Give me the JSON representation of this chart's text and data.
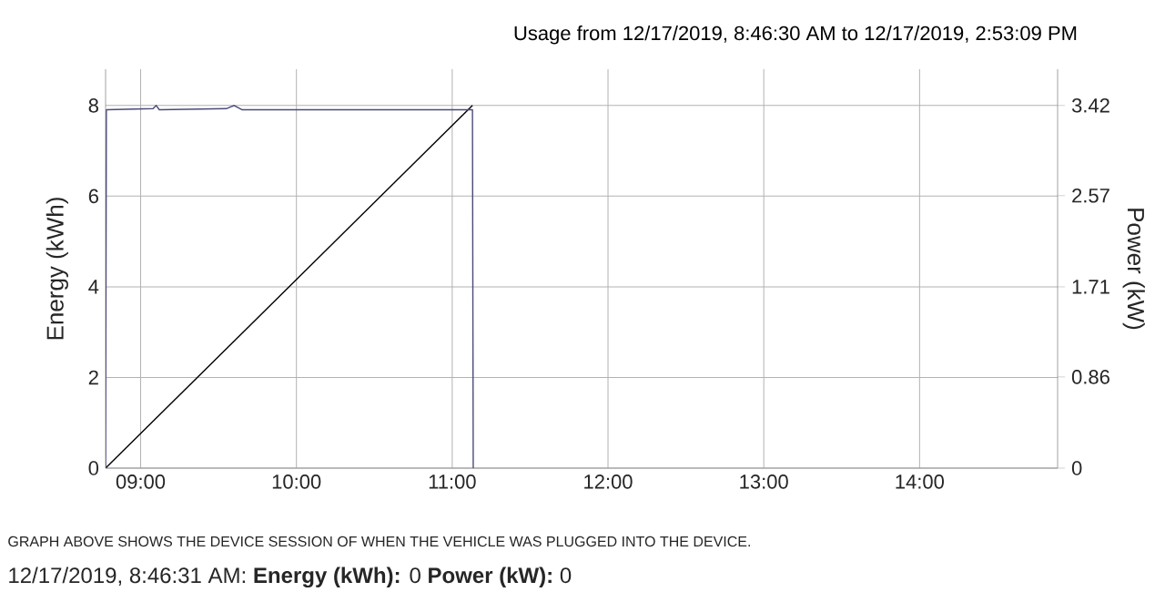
{
  "chart_data": {
    "type": "line",
    "title": "Usage from 12/17/2019, 8:46:30 AM to 12/17/2019, 2:53:09 PM",
    "ylabel": "Energy (kWh)",
    "y2label": "Power (kW)",
    "xlim": [
      8.775,
      14.886
    ],
    "ylim": [
      0,
      8.8
    ],
    "y2lim": [
      0,
      3.762
    ],
    "xticks": [
      {
        "value": 9,
        "label": "09:00"
      },
      {
        "value": 10,
        "label": "10:00"
      },
      {
        "value": 11,
        "label": "11:00"
      },
      {
        "value": 12,
        "label": "12:00"
      },
      {
        "value": 13,
        "label": "13:00"
      },
      {
        "value": 14,
        "label": "14:00"
      }
    ],
    "yticks": [
      0,
      2,
      4,
      6,
      8
    ],
    "y2ticks": [
      0,
      0.86,
      1.71,
      2.57,
      3.42
    ],
    "grid": true,
    "series": [
      {
        "color": "#000000",
        "x": [
          8.775,
          11.13
        ],
        "values": [
          0,
          8.0
        ]
      },
      {
        "color": "#4a4a78",
        "axis": "y2",
        "x": [
          8.775,
          8.78,
          9.08,
          9.1,
          9.12,
          9.55,
          9.6,
          9.65,
          11.13,
          11.135
        ],
        "values": [
          0,
          3.38,
          3.39,
          3.42,
          3.38,
          3.39,
          3.42,
          3.38,
          3.38,
          0
        ]
      }
    ],
    "annotations": [
      "GRAPH ABOVE SHOWS THE DEVICE SESSION OF WHEN THE VEHICLE WAS PLUGGED INTO THE DEVICE.",
      "12/17/2019, 8:46:31 AM: **Energy (kWh):** 0 **Power (kW):** 0"
    ]
  }
}
